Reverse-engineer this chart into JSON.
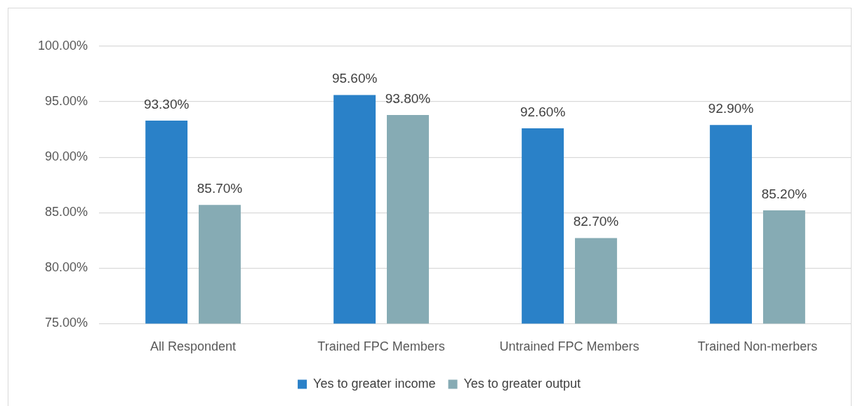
{
  "chart_data": {
    "type": "bar",
    "categories": [
      "All Respondent",
      "Trained FPC Members",
      "Untrained FPC Members",
      "Trained Non-merbers"
    ],
    "series": [
      {
        "name": "Yes to greater income",
        "color": "#2a81c8",
        "values": [
          93.3,
          95.6,
          92.6,
          92.9
        ],
        "value_labels": [
          "93.30%",
          "95.60%",
          "92.60%",
          "92.90%"
        ]
      },
      {
        "name": "Yes to greater output",
        "color": "#86abb4",
        "values": [
          85.7,
          93.8,
          82.7,
          85.2
        ],
        "value_labels": [
          "85.70%",
          "93.80%",
          "82.70%",
          "85.20%"
        ]
      }
    ],
    "ylim": [
      75,
      100
    ],
    "yticks": [
      {
        "value": 75,
        "label": "75.00%"
      },
      {
        "value": 80,
        "label": "80.00%"
      },
      {
        "value": 85,
        "label": "85.00%"
      },
      {
        "value": 90,
        "label": "90.00%"
      },
      {
        "value": 95,
        "label": "95.00%"
      },
      {
        "value": 100,
        "label": "100.00%"
      }
    ],
    "grid": "y",
    "legend": "bottom"
  }
}
